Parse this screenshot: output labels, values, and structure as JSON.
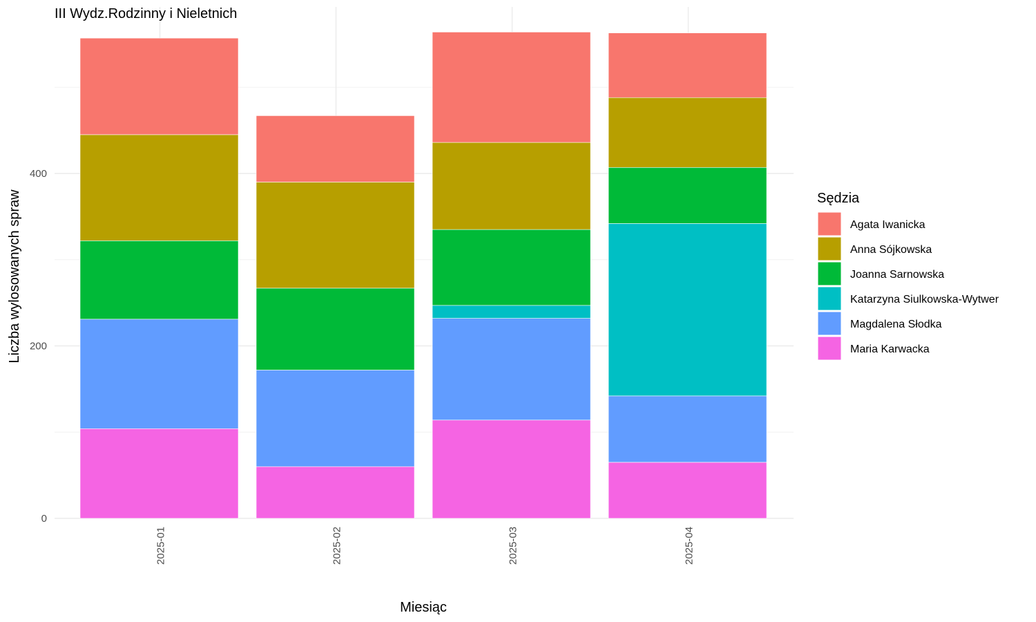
{
  "chart_data": {
    "type": "bar",
    "stacked": true,
    "title": "III Wydz.Rodzinny i Nieletnich",
    "xlabel": "Miesiąc",
    "ylabel": "Liczba wylosowanych spraw",
    "categories": [
      "2025-01",
      "2025-02",
      "2025-03",
      "2025-04"
    ],
    "ylim": [
      0,
      590
    ],
    "yticks": [
      0,
      200,
      400
    ],
    "grid": true,
    "legend": {
      "title": "Sędzia",
      "position": "right"
    },
    "series": [
      {
        "name": "Maria Karwacka",
        "color": "#F564E3",
        "values": [
          104,
          60,
          114,
          65
        ]
      },
      {
        "name": "Magdalena Słodka",
        "color": "#619CFF",
        "values": [
          127,
          112,
          118,
          77
        ]
      },
      {
        "name": "Katarzyna Siulkowska-Wytwer",
        "color": "#00BFC4",
        "values": [
          0,
          0,
          15,
          200
        ]
      },
      {
        "name": "Joanna Sarnowska",
        "color": "#00BA38",
        "values": [
          91,
          95,
          88,
          65
        ]
      },
      {
        "name": "Anna Sójkowska",
        "color": "#B79F00",
        "values": [
          123,
          123,
          101,
          81
        ]
      },
      {
        "name": "Agata Iwanicka",
        "color": "#F8766D",
        "values": [
          112,
          77,
          128,
          75
        ]
      }
    ],
    "legend_order": [
      "Agata Iwanicka",
      "Anna Sójkowska",
      "Joanna Sarnowska",
      "Katarzyna Siulkowska-Wytwer",
      "Magdalena Słodka",
      "Maria Karwacka"
    ]
  }
}
